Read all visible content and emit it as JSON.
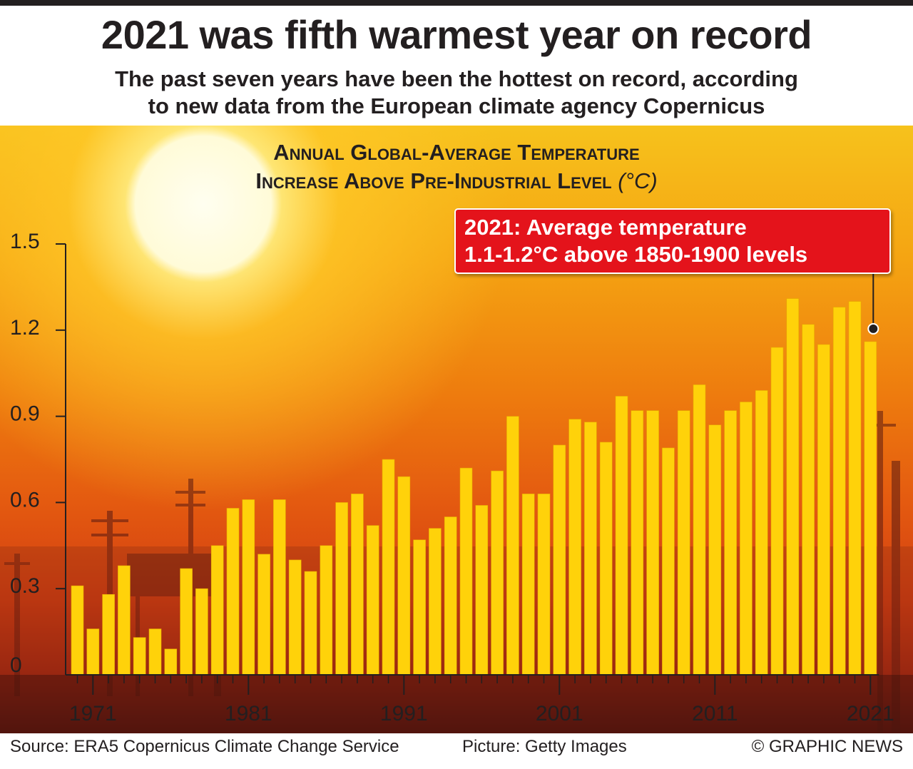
{
  "headline": "2021 was fifth warmest year on record",
  "subhead_line1": "The past seven years have been the hottest on record, according",
  "subhead_line2": "to new data from the European climate agency Copernicus",
  "callout": {
    "line1": "2021: Average temperature",
    "line2": "1.1-1.2°C above 1850-1900 levels"
  },
  "footer": {
    "source": "Source: ERA5 Copernicus Climate Change Service",
    "picture": "Picture: Getty Images",
    "credit": "© GRAPHIC NEWS"
  },
  "colors": {
    "bar": "#ffd20a",
    "bar_edge": "#e6a700",
    "callout": "#e4131b",
    "text": "#231f20"
  },
  "chart_data": {
    "type": "bar",
    "title_line1": "Annual Global-Average Temperature",
    "title_line2": "Increase Above Pre-Industrial Level",
    "title_unit": "(°C)",
    "xlabel": "",
    "ylabel": "",
    "ylim": [
      0,
      1.5
    ],
    "yticks": [
      0,
      0.3,
      0.6,
      0.9,
      1.2,
      1.5
    ],
    "ytick_labels": [
      "0",
      "0.3",
      "0.6",
      "0.9",
      "1.2",
      "1.5"
    ],
    "xtick_labels": [
      "1971",
      "1981",
      "1991",
      "2001",
      "2011",
      "2021"
    ],
    "categories": [
      1970,
      1971,
      1972,
      1973,
      1974,
      1975,
      1976,
      1977,
      1978,
      1979,
      1980,
      1981,
      1982,
      1983,
      1984,
      1985,
      1986,
      1987,
      1988,
      1989,
      1990,
      1991,
      1992,
      1993,
      1994,
      1995,
      1996,
      1997,
      1998,
      1999,
      2000,
      2001,
      2002,
      2003,
      2004,
      2005,
      2006,
      2007,
      2008,
      2009,
      2010,
      2011,
      2012,
      2013,
      2014,
      2015,
      2016,
      2017,
      2018,
      2019,
      2020,
      2021
    ],
    "values": [
      0.31,
      0.16,
      0.28,
      0.38,
      0.13,
      0.16,
      0.09,
      0.37,
      0.3,
      0.45,
      0.58,
      0.61,
      0.42,
      0.61,
      0.4,
      0.36,
      0.45,
      0.6,
      0.63,
      0.52,
      0.75,
      0.69,
      0.47,
      0.51,
      0.55,
      0.72,
      0.59,
      0.71,
      0.9,
      0.63,
      0.63,
      0.8,
      0.89,
      0.88,
      0.81,
      0.97,
      0.92,
      0.92,
      0.79,
      0.92,
      1.01,
      0.87,
      0.92,
      0.95,
      0.99,
      1.14,
      1.31,
      1.22,
      1.15,
      1.28,
      1.3,
      1.16
    ]
  }
}
